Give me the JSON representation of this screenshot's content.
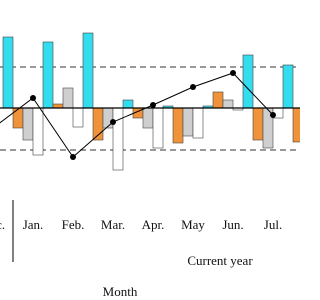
{
  "chart_data": {
    "type": "bar",
    "categories": [
      "Dec.",
      "Jan.",
      "Feb.",
      "Mar.",
      "Apr.",
      "May",
      "Jun.",
      "Jul."
    ],
    "group_label": "Current year",
    "x_label": "Month",
    "ylim": [
      -92,
      108
    ],
    "hlines": [
      41,
      -42
    ],
    "series": [
      {
        "type": "bar",
        "color": "#33dcee",
        "values": [
          71,
          66,
          75,
          8,
          2,
          2,
          53,
          43
        ]
      },
      {
        "type": "bar",
        "color": "#f0923a",
        "values": [
          -20,
          4,
          -32,
          -10,
          -35,
          16,
          -32,
          -34
        ]
      },
      {
        "type": "bar",
        "color": "#cfcfcf",
        "values": [
          -32,
          20,
          -20,
          -20,
          -28,
          8,
          -40,
          null
        ]
      },
      {
        "type": "bar",
        "color": "#ffffff",
        "values": [
          -47,
          -19,
          -62,
          -40,
          -30,
          -2,
          -10,
          null
        ]
      },
      {
        "type": "line",
        "color": "#000000",
        "values": [
          -20,
          10,
          -49,
          -14,
          3,
          21,
          35,
          -7
        ]
      }
    ]
  }
}
